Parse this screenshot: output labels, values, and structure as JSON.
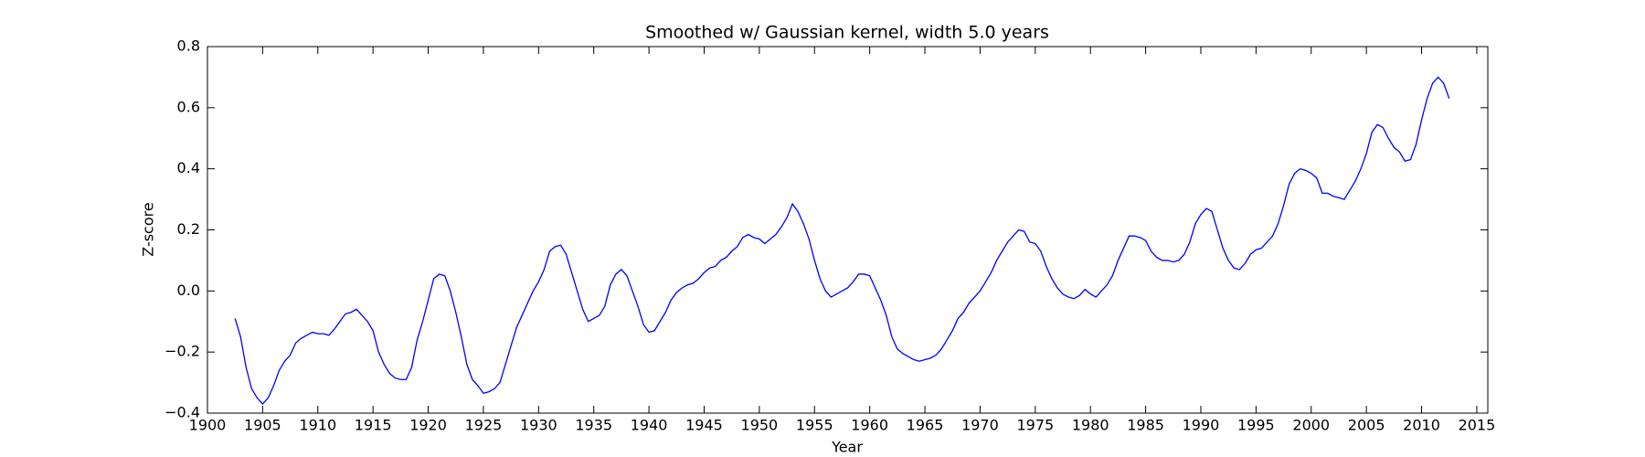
{
  "chart_data": {
    "type": "line",
    "title": "Smoothed w/ Gaussian kernel, width 5.0 years",
    "x_label": "Year",
    "y_label": "Z-score",
    "xlim": [
      1900,
      2016
    ],
    "ylim": [
      -0.4,
      0.8
    ],
    "xticks": [
      1900,
      1905,
      1910,
      1915,
      1920,
      1925,
      1930,
      1935,
      1940,
      1945,
      1950,
      1955,
      1960,
      1965,
      1970,
      1975,
      1980,
      1985,
      1990,
      1995,
      2000,
      2005,
      2010,
      2015
    ],
    "yticks": [
      {
        "value": -0.4,
        "label": "−0.4"
      },
      {
        "value": -0.2,
        "label": "−0.2"
      },
      {
        "value": 0,
        "label": "0.0"
      },
      0.2,
      0.4,
      0.6,
      0.8
    ],
    "grid": false,
    "x": [
      1902.5,
      1903,
      1903.5,
      1904,
      1904.5,
      1905,
      1905.5,
      1906,
      1906.5,
      1907,
      1907.5,
      1908,
      1908.5,
      1909,
      1909.5,
      1910,
      1910.5,
      1911,
      1911.5,
      1912,
      1912.5,
      1913,
      1913.5,
      1914,
      1914.5,
      1915,
      1915.5,
      1916,
      1916.5,
      1917,
      1917.5,
      1918,
      1918.5,
      1919,
      1919.5,
      1920,
      1920.5,
      1921,
      1921.5,
      1922,
      1922.5,
      1923,
      1923.5,
      1924,
      1924.5,
      1925,
      1925.5,
      1926,
      1926.5,
      1927,
      1927.5,
      1928,
      1928.5,
      1929,
      1929.5,
      1930,
      1930.5,
      1931,
      1931.5,
      1932,
      1932.5,
      1933,
      1933.5,
      1934,
      1934.5,
      1935,
      1935.5,
      1936,
      1936.5,
      1937,
      1937.5,
      1938,
      1938.5,
      1939,
      1939.5,
      1940,
      1940.5,
      1941,
      1941.5,
      1942,
      1942.5,
      1943,
      1943.5,
      1944,
      1944.5,
      1945,
      1945.5,
      1946,
      1946.5,
      1947,
      1947.5,
      1948,
      1948.5,
      1949,
      1949.5,
      1950,
      1950.5,
      1951,
      1951.5,
      1952,
      1952.5,
      1953,
      1953.5,
      1954,
      1954.5,
      1955,
      1955.5,
      1956,
      1956.5,
      1957,
      1957.5,
      1958,
      1958.5,
      1959,
      1959.5,
      1960,
      1960.5,
      1961,
      1961.5,
      1962,
      1962.5,
      1963,
      1963.5,
      1964,
      1964.5,
      1965,
      1965.5,
      1966,
      1966.5,
      1967,
      1967.5,
      1968,
      1968.5,
      1969,
      1969.5,
      1970,
      1970.5,
      1971,
      1971.5,
      1972,
      1972.5,
      1973,
      1973.5,
      1974,
      1974.5,
      1975,
      1975.5,
      1976,
      1976.5,
      1977,
      1977.5,
      1978,
      1978.5,
      1979,
      1979.5,
      1980,
      1980.5,
      1981,
      1981.5,
      1982,
      1982.5,
      1983,
      1983.5,
      1984,
      1984.5,
      1985,
      1985.5,
      1986,
      1986.5,
      1987,
      1987.5,
      1988,
      1988.5,
      1989,
      1989.5,
      1990,
      1990.5,
      1991,
      1991.5,
      1992,
      1992.5,
      1993,
      1993.5,
      1994,
      1994.5,
      1995,
      1995.5,
      1996,
      1996.5,
      1997,
      1997.5,
      1998,
      1998.5,
      1999,
      1999.5,
      2000,
      2000.5,
      2001,
      2001.5,
      2002,
      2002.5,
      2003,
      2003.5,
      2004,
      2004.5,
      2005,
      2005.5,
      2006,
      2006.5,
      2007,
      2007.5,
      2008,
      2008.5,
      2009,
      2009.5,
      2010,
      2010.5,
      2011,
      2011.5,
      2012,
      2012.5
    ],
    "series": [
      {
        "color": "#0000ff",
        "values": [
          -0.09,
          -0.15,
          -0.25,
          -0.32,
          -0.35,
          -0.37,
          -0.35,
          -0.31,
          -0.26,
          -0.23,
          -0.21,
          -0.17,
          -0.155,
          -0.145,
          -0.135,
          -0.14,
          -0.14,
          -0.145,
          -0.125,
          -0.1,
          -0.075,
          -0.07,
          -0.06,
          -0.08,
          -0.1,
          -0.13,
          -0.2,
          -0.24,
          -0.27,
          -0.285,
          -0.29,
          -0.29,
          -0.25,
          -0.16,
          -0.1,
          -0.03,
          0.04,
          0.055,
          0.05,
          0.0,
          -0.07,
          -0.15,
          -0.24,
          -0.29,
          -0.31,
          -0.335,
          -0.33,
          -0.32,
          -0.3,
          -0.24,
          -0.18,
          -0.12,
          -0.08,
          -0.04,
          0.0,
          0.03,
          0.07,
          0.13,
          0.145,
          0.15,
          0.12,
          0.06,
          0.0,
          -0.06,
          -0.1,
          -0.09,
          -0.08,
          -0.05,
          0.02,
          0.055,
          0.07,
          0.05,
          0.0,
          -0.05,
          -0.11,
          -0.135,
          -0.13,
          -0.1,
          -0.07,
          -0.03,
          -0.005,
          0.01,
          0.02,
          0.025,
          0.04,
          0.06,
          0.075,
          0.08,
          0.1,
          0.11,
          0.13,
          0.145,
          0.175,
          0.185,
          0.175,
          0.17,
          0.155,
          0.17,
          0.185,
          0.21,
          0.24,
          0.285,
          0.26,
          0.22,
          0.17,
          0.1,
          0.04,
          0.0,
          -0.02,
          -0.01,
          0.0,
          0.01,
          0.03,
          0.055,
          0.055,
          0.05,
          0.01,
          -0.03,
          -0.08,
          -0.15,
          -0.19,
          -0.205,
          -0.215,
          -0.225,
          -0.23,
          -0.225,
          -0.22,
          -0.21,
          -0.19,
          -0.16,
          -0.13,
          -0.09,
          -0.07,
          -0.04,
          -0.02,
          0.0,
          0.03,
          0.06,
          0.1,
          0.13,
          0.16,
          0.18,
          0.2,
          0.195,
          0.16,
          0.155,
          0.13,
          0.08,
          0.04,
          0.01,
          -0.01,
          -0.02,
          -0.025,
          -0.015,
          0.005,
          -0.01,
          -0.02,
          0.0,
          0.02,
          0.05,
          0.1,
          0.14,
          0.18,
          0.18,
          0.175,
          0.165,
          0.13,
          0.11,
          0.1,
          0.1,
          0.095,
          0.1,
          0.12,
          0.16,
          0.22,
          0.25,
          0.27,
          0.26,
          0.2,
          0.14,
          0.1,
          0.075,
          0.07,
          0.09,
          0.12,
          0.135,
          0.14,
          0.16,
          0.18,
          0.22,
          0.28,
          0.35,
          0.385,
          0.4,
          0.395,
          0.385,
          0.37,
          0.32,
          0.32,
          0.31,
          0.305,
          0.3,
          0.33,
          0.36,
          0.4,
          0.45,
          0.52,
          0.545,
          0.535,
          0.5,
          0.47,
          0.455,
          0.425,
          0.43,
          0.48,
          0.56,
          0.63,
          0.68,
          0.7,
          0.68,
          0.63
        ]
      }
    ]
  }
}
